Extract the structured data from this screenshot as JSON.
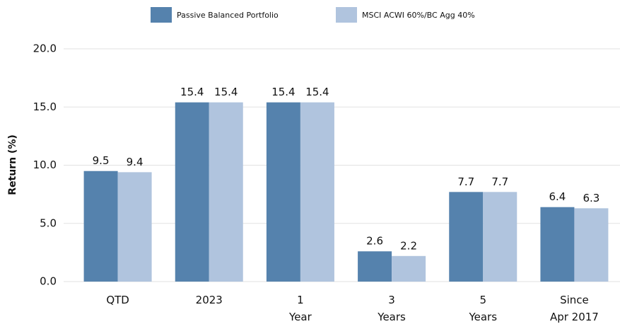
{
  "chart_data": {
    "type": "bar",
    "y_label": "Return (%)",
    "categories": [
      "QTD",
      "2023",
      "1\nYear",
      "3\nYears",
      "5\nYears",
      "Since\nApr 2017"
    ],
    "series": [
      {
        "name": "Passive Balanced Portfolio",
        "color": "#5582ad",
        "values": [
          9.5,
          15.4,
          15.4,
          2.6,
          7.7,
          6.4
        ]
      },
      {
        "name": "MSCI ACWI 60%/BC Agg 40%",
        "color": "#b0c4de",
        "values": [
          9.4,
          15.4,
          15.4,
          2.2,
          7.7,
          6.3
        ]
      }
    ],
    "ylim": [
      0,
      20
    ],
    "yticks": [
      {
        "value": 0,
        "label": "0.0"
      },
      {
        "value": 5,
        "label": "5.0"
      },
      {
        "value": 10,
        "label": "10.0"
      },
      {
        "value": 15,
        "label": "15.0"
      },
      {
        "value": 20,
        "label": "20.0"
      }
    ],
    "grid": true
  }
}
